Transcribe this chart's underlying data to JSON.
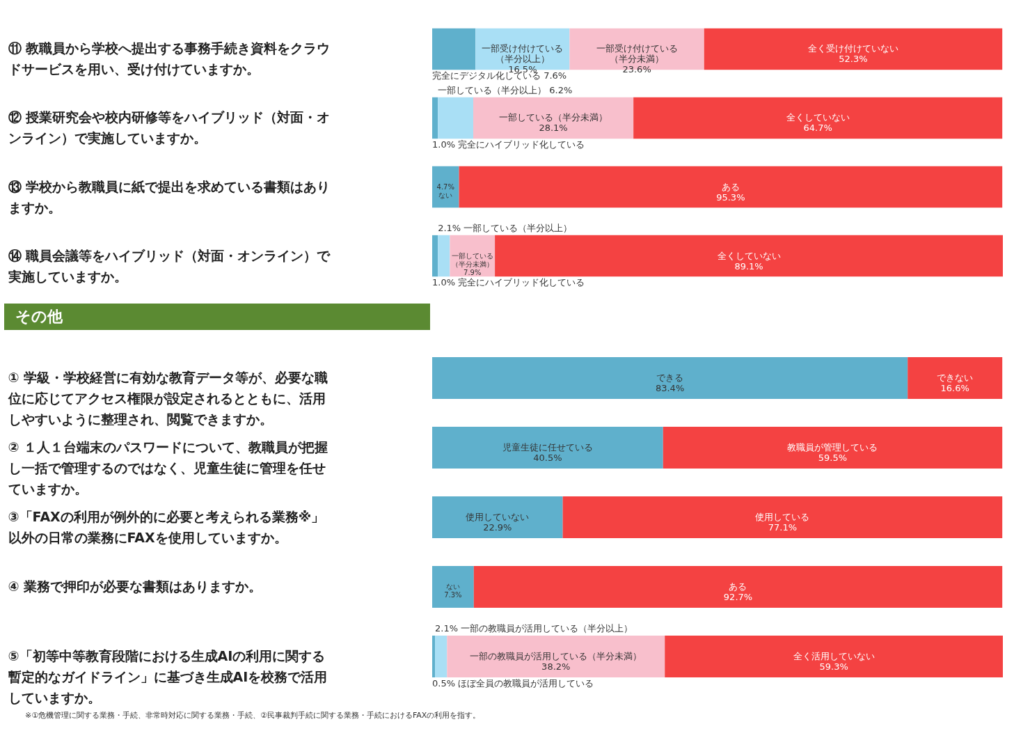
{
  "chart_data": [
    {
      "type": "bar",
      "orientation": "horizontal",
      "stacked": true,
      "categories": [
        "⑪ 教職員から学校へ提出する事務手続き資料をクラウドサービスを用い、受け付けていますか。",
        "⑫ 授業研究会や校内研修等をハイブリッド（対面・オンライン）で実施していますか。",
        "⑬ 学校から教職員に紙で提出を求めている書類はありますか。",
        "⑭ 職員会議等をハイブリッド（対面・オンライン）で実施していますか。"
      ],
      "series": [
        {
          "color": "#5fb0cc",
          "values": [
            7.6,
            1.0,
            4.7,
            1.0
          ],
          "value_labels": [
            "完全にデジタル化している\n7.6%",
            "1.0%\n完全にハイブリッド化している",
            "4.7%\nない",
            "1.0%\n完全にハイブリッド化している"
          ]
        },
        {
          "color": "#a9dff5",
          "values": [
            16.5,
            6.2,
            null,
            2.1
          ],
          "value_labels": [
            "一部受け付けている（半分以上）\n16.5%",
            "一部している（半分以上）\n6.2%",
            null,
            "2.1%\n一部している（半分以上）"
          ]
        },
        {
          "color": "#f8bfcc",
          "values": [
            23.6,
            28.1,
            null,
            7.9
          ],
          "value_labels": [
            "一部受け付けている（半分未満）\n23.6%",
            "一部している（半分未満）\n28.1%",
            null,
            "一部している（半分未満）\n7.9%"
          ]
        },
        {
          "color": "#f44242",
          "values": [
            52.3,
            64.7,
            95.3,
            89.1
          ],
          "value_labels": [
            "全く受け付けていない\n52.3%",
            "全くしていない\n64.7%",
            "ある\n95.3%",
            "全くしていない\n89.1%"
          ]
        }
      ]
    },
    {
      "type": "bar",
      "orientation": "horizontal",
      "stacked": true,
      "title": "その他",
      "categories": [
        "① 学級・学校経営に有効な教育データ等が、必要な職位に応じてアクセス権限が設定されるとともに、活用しやすいように整理され、閲覧できますか。",
        "② １人１台端末のパスワードについて、教職員が把握し一括で管理するのではなく、児童生徒に管理を任せていますか。",
        "③「FAXの利用が例外的に必要と考えられる業務※」以外の日常の業務にFAXを使用していますか。",
        "④ 業務で押印が必要な書類はありますか。",
        "⑤「初等中等教育段階における生成AIの利用に関する暫定的なガイドライン」に基づき生成AIを校務で活用していますか。"
      ],
      "series": [
        {
          "color": "#5fb0cc",
          "values": [
            83.4,
            40.5,
            22.9,
            7.3,
            0.5
          ],
          "value_labels": [
            "できる\n83.4%",
            "児童生徒に任せている\n40.5%",
            "使用していない\n22.9%",
            "ない\n7.3%",
            "0.5%\nほぼ全員の教職員が活用している"
          ]
        },
        {
          "color": "#a9dff5",
          "values": [
            null,
            null,
            null,
            null,
            2.1
          ],
          "value_labels": [
            null,
            null,
            null,
            null,
            "2.1%\n一部の教職員が活用している（半分以上）"
          ]
        },
        {
          "color": "#f8bfcc",
          "values": [
            null,
            null,
            null,
            null,
            38.2
          ],
          "value_labels": [
            null,
            null,
            null,
            null,
            "一部の教職員が活用している（半分未満）\n38.2%"
          ]
        },
        {
          "color": "#f44242",
          "values": [
            16.6,
            59.5,
            77.1,
            92.7,
            59.3
          ],
          "value_labels": [
            "できない\n16.6%",
            "教職員が管理している\n59.5%",
            "使用している\n77.1%",
            "ある\n92.7%",
            "全く活用していない\n59.3%"
          ]
        }
      ],
      "annotations": [
        "※①危機管理に関する業務・手続、非常時対応に関する業務・手続、②民事裁判手続に関する業務・手続におけるFAXの利用を指す。"
      ]
    }
  ]
}
